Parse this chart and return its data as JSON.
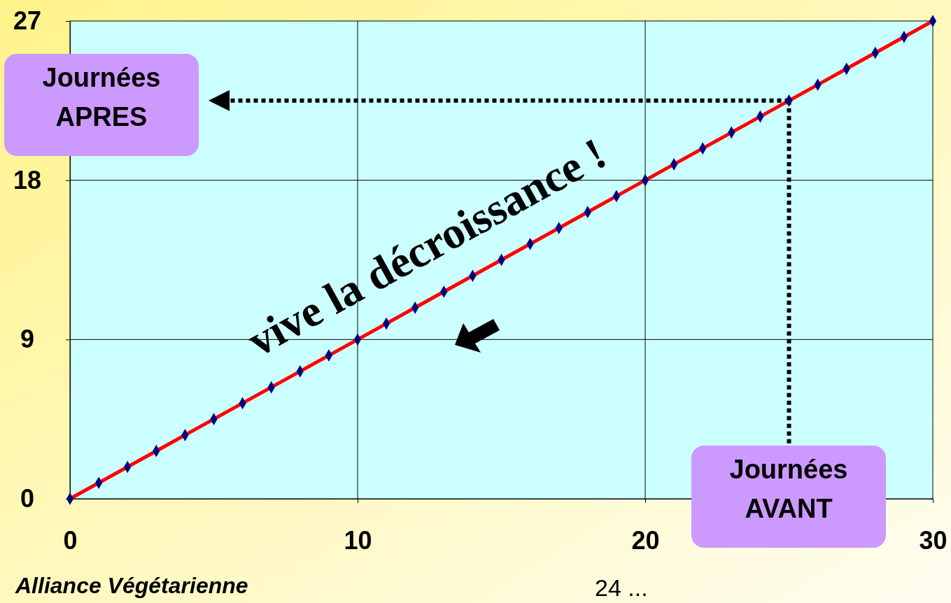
{
  "chart_data": {
    "type": "line",
    "x": [
      0,
      1,
      2,
      3,
      4,
      5,
      6,
      7,
      8,
      9,
      10,
      11,
      12,
      13,
      14,
      15,
      16,
      17,
      18,
      19,
      20,
      21,
      22,
      23,
      24,
      25,
      26,
      27,
      28,
      29,
      30
    ],
    "series": [
      {
        "color": "#ff0000",
        "values": [
          0,
          0.9,
          1.8,
          2.7,
          3.6,
          4.5,
          5.4,
          6.3,
          7.2,
          8.1,
          9,
          9.9,
          10.8,
          11.7,
          12.6,
          13.5,
          14.4,
          15.3,
          16.2,
          17.1,
          18,
          18.9,
          19.8,
          20.7,
          21.6,
          22.5,
          23.4,
          24.3,
          25.2,
          26.1,
          27
        ]
      }
    ],
    "xlim": [
      0,
      30
    ],
    "xticks": [
      0,
      10,
      20,
      30
    ],
    "ylim": [
      0,
      27
    ],
    "yticks": [
      0,
      9,
      18,
      27
    ],
    "grid": true,
    "marker": "diamond",
    "line_style": "solid",
    "ref_lines": [
      {
        "axis": "y",
        "value": 22.5,
        "label": "Journées APRES",
        "color": "#000000",
        "line_style": "dotted"
      },
      {
        "axis": "x",
        "value": 25,
        "label": "Journées AVANT",
        "color": "#000000",
        "line_style": "dotted"
      }
    ],
    "annotations": [
      "vive la décroissance !",
      "Alliance Végétarienne",
      "24 ..."
    ]
  }
}
